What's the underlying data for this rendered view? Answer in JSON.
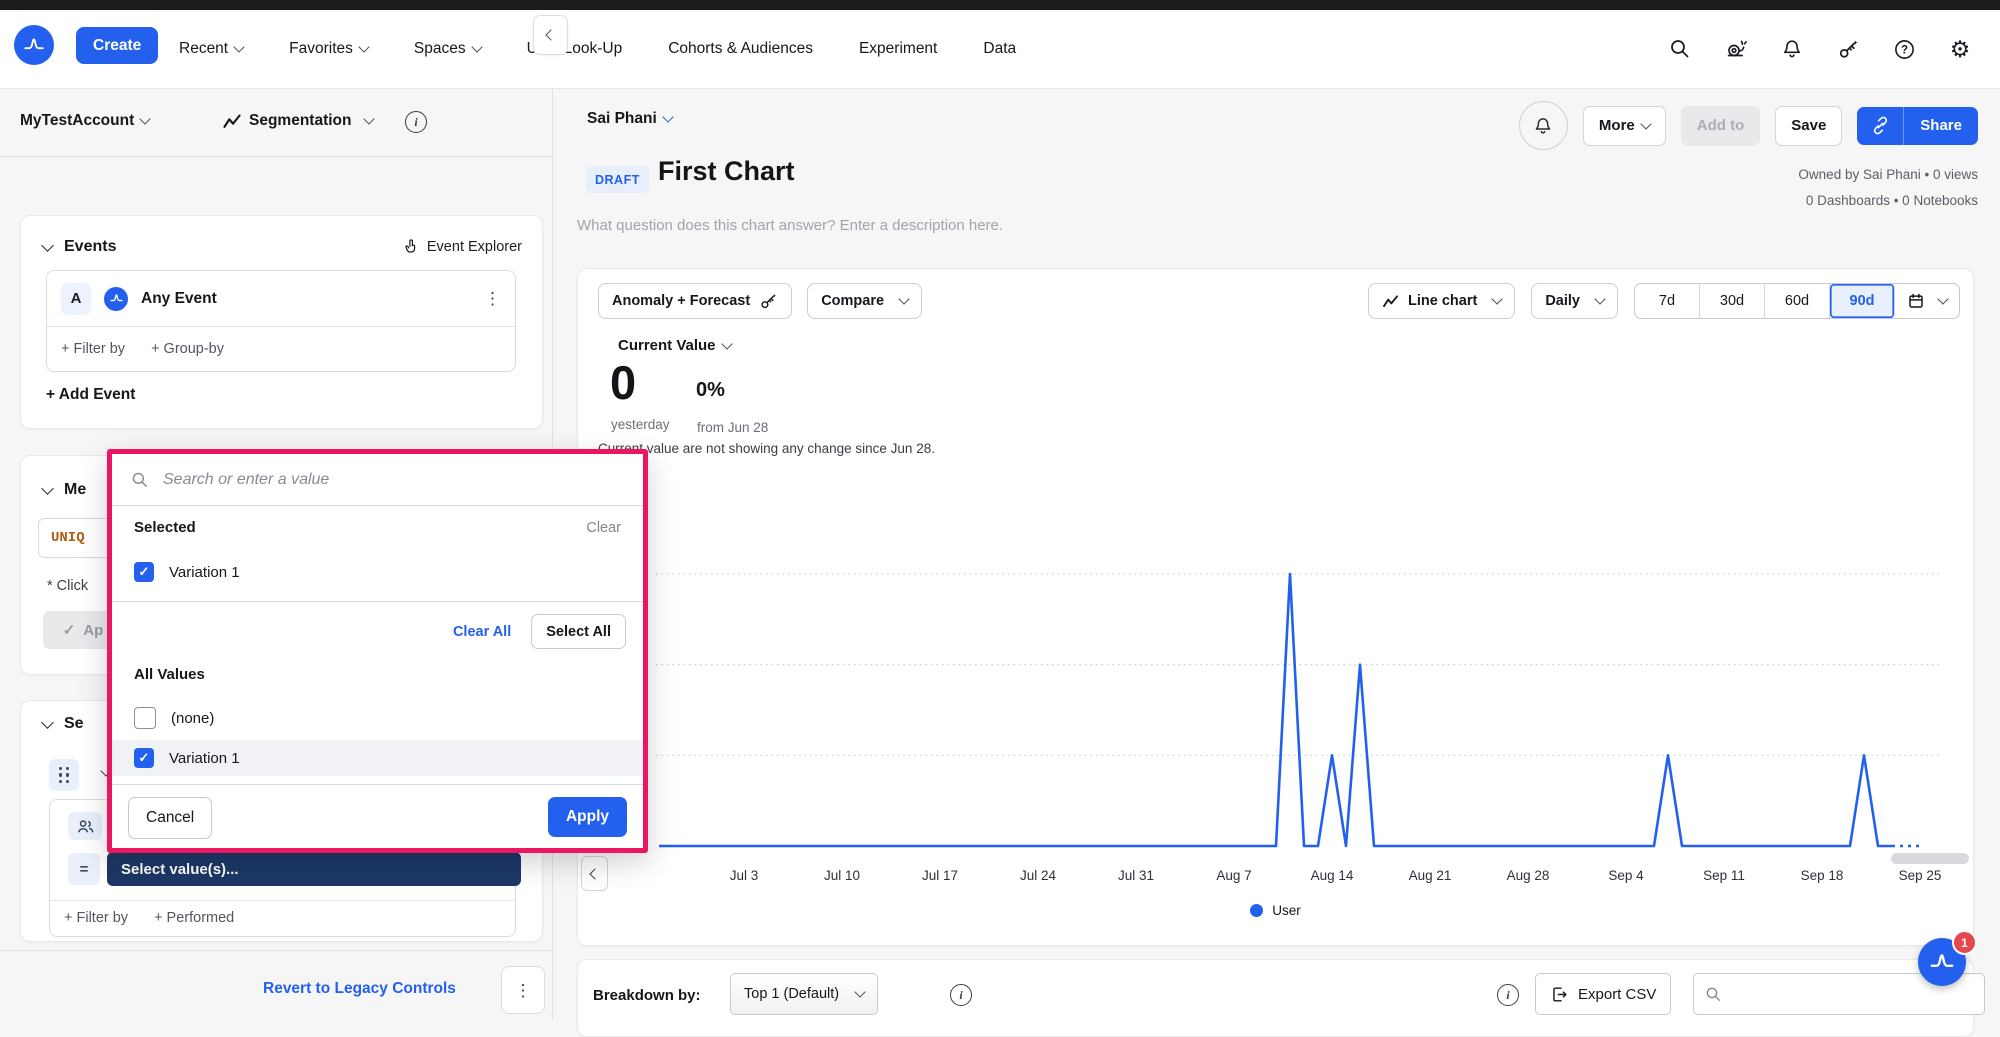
{
  "topnav": {
    "create_label": "Create",
    "items": [
      {
        "label": "Recent",
        "chevron": true
      },
      {
        "label": "Favorites",
        "chevron": true
      },
      {
        "label": "Spaces",
        "chevron": true
      },
      {
        "label": "User Look-Up",
        "chevron": false
      },
      {
        "label": "Cohorts & Audiences",
        "chevron": false
      },
      {
        "label": "Experiment",
        "chevron": false
      },
      {
        "label": "Data",
        "chevron": false
      }
    ],
    "icons": [
      "search-icon",
      "snail-icon",
      "bell-icon",
      "sparkle-key-icon",
      "help-icon",
      "settings-icon"
    ]
  },
  "subheader": {
    "account": "MyTestAccount",
    "view_type": "Segmentation",
    "more_label": "More",
    "add_to_label": "Add to",
    "save_label": "Save",
    "share_label": "Share"
  },
  "sidebar": {
    "events": {
      "header": "Events",
      "explorer_label": "Event Explorer",
      "event_letter": "A",
      "event_name": "Any Event",
      "filter_by": "+ Filter by",
      "group_by": "+ Group-by",
      "add_event": "+ Add Event"
    },
    "measured": {
      "header_visible": "Me",
      "formula_visible": "UNIQ",
      "note_visible": "* Click",
      "apply_visible": "Ap"
    },
    "segment": {
      "header_visible": "Se",
      "select_values": "Select value(s)...",
      "filter_by": "+ Filter by",
      "performed": "+ Performed"
    },
    "revert_label": "Revert to Legacy Controls"
  },
  "title_block": {
    "owner": "Sai Phani",
    "badge": "DRAFT",
    "title": "First Chart",
    "description_placeholder": "What question does this chart answer? Enter a description here.",
    "meta_line1": "Owned by Sai Phani • 0 views",
    "meta_line2": "0 Dashboards • 0 Notebooks"
  },
  "controls": {
    "anomaly_label": "Anomaly + Forecast",
    "compare_label": "Compare",
    "chart_type_label": "Line chart",
    "granularity_label": "Daily",
    "ranges": [
      "7d",
      "30d",
      "60d",
      "90d"
    ],
    "selected_range": "90d"
  },
  "metric": {
    "label": "Current Value",
    "value": "0",
    "pct": "0%",
    "value_sub": "yesterday",
    "pct_sub": "from Jun 28",
    "note": "Current value are not showing any change since Jun 28."
  },
  "chart_data": {
    "type": "line",
    "title": "First Chart",
    "series": [
      {
        "name": "User",
        "color": "#2360ed"
      }
    ],
    "x_start": "Jun 28",
    "x_end": "Sep 25",
    "num_days": 90,
    "baseline_value": 0,
    "spikes": [
      {
        "day_index": 44,
        "date": "Aug 11",
        "value": 3
      },
      {
        "day_index": 47,
        "date": "Aug 14",
        "value": 1
      },
      {
        "day_index": 49,
        "date": "Aug 16",
        "value": 2
      },
      {
        "day_index": 71,
        "date": "Sep 7",
        "value": 1
      },
      {
        "day_index": 85,
        "date": "Sep 21",
        "value": 1
      }
    ],
    "x_ticks": [
      {
        "day_index": 5,
        "label": "Jul 3"
      },
      {
        "day_index": 12,
        "label": "Jul 10"
      },
      {
        "day_index": 19,
        "label": "Jul 17"
      },
      {
        "day_index": 26,
        "label": "Jul 24"
      },
      {
        "day_index": 33,
        "label": "Jul 31"
      },
      {
        "day_index": 40,
        "label": "Aug 7"
      },
      {
        "day_index": 47,
        "label": "Aug 14"
      },
      {
        "day_index": 54,
        "label": "Aug 21"
      },
      {
        "day_index": 61,
        "label": "Aug 28"
      },
      {
        "day_index": 68,
        "label": "Sep 4"
      },
      {
        "day_index": 75,
        "label": "Sep 11"
      },
      {
        "day_index": 82,
        "label": "Sep 18"
      },
      {
        "day_index": 89,
        "label": "Sep 25"
      }
    ],
    "y_gridlines": [
      1,
      2,
      3
    ],
    "ylim": [
      0,
      3.35
    ],
    "y_axis_visible_label": "0",
    "forecast_dashed_from_day": 87,
    "grid_style": "dotted",
    "legend_position": "bottom-center"
  },
  "modal": {
    "search_placeholder": "Search or enter a value",
    "selected_header": "Selected",
    "clear_label": "Clear",
    "selected_items": [
      {
        "label": "Variation 1",
        "checked": true
      }
    ],
    "clear_all_label": "Clear All",
    "select_all_label": "Select All",
    "all_values_header": "All Values",
    "options": [
      {
        "label": "(none)",
        "checked": false,
        "highlight": false
      },
      {
        "label": "Variation 1",
        "checked": true,
        "highlight": true
      }
    ],
    "cancel_label": "Cancel",
    "apply_label": "Apply",
    "border_color": "#ec1562"
  },
  "bottom_bar": {
    "breakdown_label": "Breakdown by:",
    "breakdown_value": "Top 1 (Default)",
    "export_label": "Export CSV",
    "search_placeholder": ""
  },
  "floating_button": {
    "badge": "1"
  },
  "glyphs": {
    "kebab": "⋮",
    "check": "✓",
    "gear": "⚙"
  },
  "colors": {
    "accent_blue": "#2360ed",
    "modal_border": "#ec1562",
    "line_blue": "#2360ed",
    "navy_button": "#1d3867",
    "badge_red": "#e5484d",
    "uniq_orange": "#b05c10"
  }
}
